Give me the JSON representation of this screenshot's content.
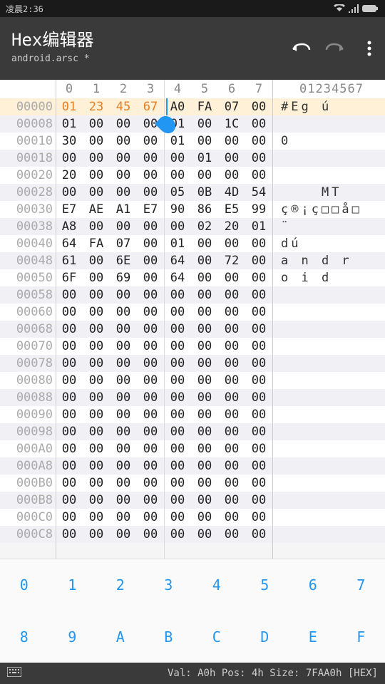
{
  "status": {
    "time": "凌晨2:36"
  },
  "toolbar": {
    "title": "Hex编辑器",
    "subtitle": "android.arsc *"
  },
  "hex": {
    "col_headers": [
      "0",
      "1",
      "2",
      "3",
      "4",
      "5",
      "6",
      "7"
    ],
    "ascii_header": "01234567",
    "cursor_row": 0,
    "cursor_col": 4,
    "selection_cols": [
      0,
      1,
      2,
      3
    ],
    "rows": [
      {
        "addr": "00000",
        "b": [
          "01",
          "23",
          "45",
          "67",
          "A0",
          "FA",
          "07",
          "00"
        ],
        "a": "#Eg ú  "
      },
      {
        "addr": "00008",
        "b": [
          "01",
          "00",
          "00",
          "00",
          "01",
          "00",
          "1C",
          "00"
        ],
        "a": ""
      },
      {
        "addr": "00010",
        "b": [
          "30",
          "00",
          "00",
          "00",
          "01",
          "00",
          "00",
          "00"
        ],
        "a": "0"
      },
      {
        "addr": "00018",
        "b": [
          "00",
          "00",
          "00",
          "00",
          "00",
          "01",
          "00",
          "00"
        ],
        "a": ""
      },
      {
        "addr": "00020",
        "b": [
          "20",
          "00",
          "00",
          "00",
          "00",
          "00",
          "00",
          "00"
        ],
        "a": ""
      },
      {
        "addr": "00028",
        "b": [
          "00",
          "00",
          "00",
          "00",
          "05",
          "0B",
          "4D",
          "54"
        ],
        "a": "    MT"
      },
      {
        "addr": "00030",
        "b": [
          "E7",
          "AE",
          "A1",
          "E7",
          "90",
          "86",
          "E5",
          "99"
        ],
        "a": "ç®¡ç□□å□"
      },
      {
        "addr": "00038",
        "b": [
          "A8",
          "00",
          "00",
          "00",
          "00",
          "02",
          "20",
          "01"
        ],
        "a": "¨"
      },
      {
        "addr": "00040",
        "b": [
          "64",
          "FA",
          "07",
          "00",
          "01",
          "00",
          "00",
          "00"
        ],
        "a": "dú"
      },
      {
        "addr": "00048",
        "b": [
          "61",
          "00",
          "6E",
          "00",
          "64",
          "00",
          "72",
          "00"
        ],
        "a": "a n d r"
      },
      {
        "addr": "00050",
        "b": [
          "6F",
          "00",
          "69",
          "00",
          "64",
          "00",
          "00",
          "00"
        ],
        "a": "o i d"
      },
      {
        "addr": "00058",
        "b": [
          "00",
          "00",
          "00",
          "00",
          "00",
          "00",
          "00",
          "00"
        ],
        "a": ""
      },
      {
        "addr": "00060",
        "b": [
          "00",
          "00",
          "00",
          "00",
          "00",
          "00",
          "00",
          "00"
        ],
        "a": ""
      },
      {
        "addr": "00068",
        "b": [
          "00",
          "00",
          "00",
          "00",
          "00",
          "00",
          "00",
          "00"
        ],
        "a": ""
      },
      {
        "addr": "00070",
        "b": [
          "00",
          "00",
          "00",
          "00",
          "00",
          "00",
          "00",
          "00"
        ],
        "a": ""
      },
      {
        "addr": "00078",
        "b": [
          "00",
          "00",
          "00",
          "00",
          "00",
          "00",
          "00",
          "00"
        ],
        "a": ""
      },
      {
        "addr": "00080",
        "b": [
          "00",
          "00",
          "00",
          "00",
          "00",
          "00",
          "00",
          "00"
        ],
        "a": ""
      },
      {
        "addr": "00088",
        "b": [
          "00",
          "00",
          "00",
          "00",
          "00",
          "00",
          "00",
          "00"
        ],
        "a": ""
      },
      {
        "addr": "00090",
        "b": [
          "00",
          "00",
          "00",
          "00",
          "00",
          "00",
          "00",
          "00"
        ],
        "a": ""
      },
      {
        "addr": "00098",
        "b": [
          "00",
          "00",
          "00",
          "00",
          "00",
          "00",
          "00",
          "00"
        ],
        "a": ""
      },
      {
        "addr": "000A0",
        "b": [
          "00",
          "00",
          "00",
          "00",
          "00",
          "00",
          "00",
          "00"
        ],
        "a": ""
      },
      {
        "addr": "000A8",
        "b": [
          "00",
          "00",
          "00",
          "00",
          "00",
          "00",
          "00",
          "00"
        ],
        "a": ""
      },
      {
        "addr": "000B0",
        "b": [
          "00",
          "00",
          "00",
          "00",
          "00",
          "00",
          "00",
          "00"
        ],
        "a": ""
      },
      {
        "addr": "000B8",
        "b": [
          "00",
          "00",
          "00",
          "00",
          "00",
          "00",
          "00",
          "00"
        ],
        "a": ""
      },
      {
        "addr": "000C0",
        "b": [
          "00",
          "00",
          "00",
          "00",
          "00",
          "00",
          "00",
          "00"
        ],
        "a": ""
      },
      {
        "addr": "000C8",
        "b": [
          "00",
          "00",
          "00",
          "00",
          "00",
          "00",
          "00",
          "00"
        ],
        "a": ""
      }
    ]
  },
  "keypad": {
    "row1": [
      "0",
      "1",
      "2",
      "3",
      "4",
      "5",
      "6",
      "7"
    ],
    "row2": [
      "8",
      "9",
      "A",
      "B",
      "C",
      "D",
      "E",
      "F"
    ]
  },
  "footer": {
    "text": "Val: A0h  Pos: 4h  Size: 7FAA0h [HEX]"
  }
}
